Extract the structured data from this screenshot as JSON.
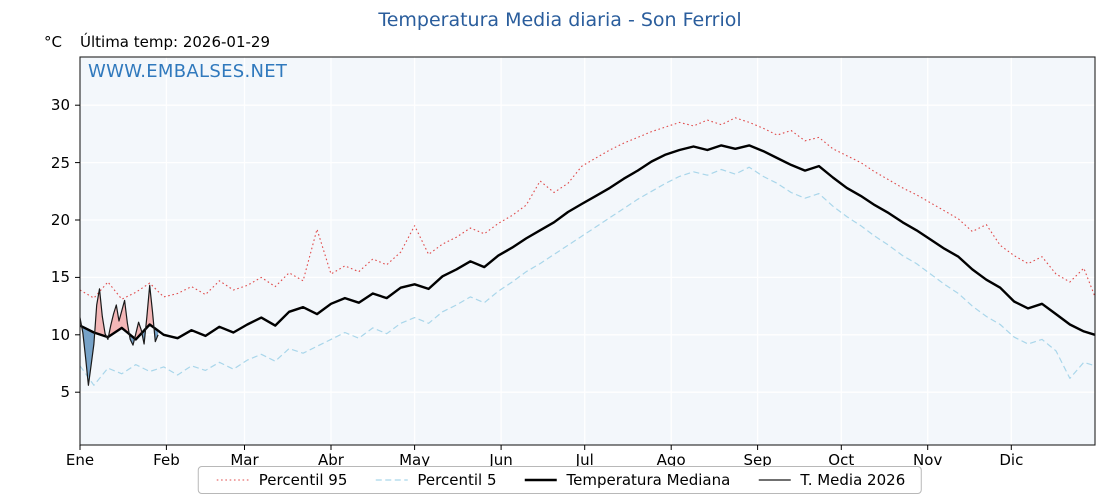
{
  "title": "Temperatura Media diaria - Son Ferriol",
  "header": {
    "y_unit": "°C",
    "last_temp": "Última temp: 2026-01-29"
  },
  "watermark": "WWW.EMBALSES.NET",
  "colors": {
    "title": "#2a5d9c",
    "watermark": "#3079bd",
    "legend_border": "#b8b8b8"
  },
  "chart_data": {
    "type": "line",
    "title": "Temperatura Media diaria - Son Ferriol",
    "xlabel": "",
    "ylabel": "°C",
    "ylim": [
      0.4,
      34.2
    ],
    "y_ticks": [
      5,
      10,
      15,
      20,
      25,
      30
    ],
    "x_tick_labels": [
      "Ene",
      "Feb",
      "Mar",
      "Abr",
      "May",
      "Jun",
      "Jul",
      "Ago",
      "Sep",
      "Oct",
      "Nov",
      "Dic"
    ],
    "month_start_days": [
      1,
      32,
      60,
      91,
      121,
      152,
      182,
      213,
      244,
      274,
      305,
      335
    ],
    "grid": true,
    "plot_bg": "#f3f7fb",
    "grid_color": "#ffffff",
    "legend_position": "bottom",
    "legend": [
      "Percentil 95",
      "Percentil 5",
      "Temperatura Mediana",
      "T. Media 2026"
    ],
    "series": [
      {
        "name": "Percentil 95",
        "color": "#e04b4b",
        "style": "dotted",
        "width": 1.1,
        "x": [
          1,
          6,
          11,
          16,
          21,
          26,
          31,
          36,
          41,
          46,
          51,
          56,
          61,
          66,
          71,
          76,
          81,
          86,
          91,
          96,
          101,
          106,
          111,
          116,
          121,
          126,
          131,
          136,
          141,
          146,
          151,
          156,
          161,
          166,
          171,
          176,
          181,
          186,
          191,
          196,
          201,
          206,
          211,
          216,
          221,
          226,
          231,
          236,
          241,
          246,
          251,
          256,
          261,
          266,
          271,
          276,
          281,
          286,
          291,
          296,
          301,
          306,
          311,
          316,
          321,
          326,
          331,
          336,
          341,
          346,
          351,
          356,
          361,
          365
        ],
        "y": [
          13.9,
          13.2,
          14.6,
          13.1,
          13.7,
          14.5,
          13.3,
          13.6,
          14.2,
          13.5,
          14.7,
          13.9,
          14.3,
          15.0,
          14.2,
          15.4,
          14.7,
          19.2,
          15.3,
          16.0,
          15.5,
          16.6,
          16.1,
          17.2,
          19.5,
          17.0,
          17.9,
          18.5,
          19.3,
          18.8,
          19.7,
          20.4,
          21.3,
          23.4,
          22.4,
          23.2,
          24.7,
          25.4,
          26.1,
          26.7,
          27.2,
          27.7,
          28.1,
          28.5,
          28.2,
          28.7,
          28.3,
          28.9,
          28.5,
          28.0,
          27.4,
          27.8,
          26.9,
          27.2,
          26.2,
          25.6,
          25.0,
          24.2,
          23.5,
          22.8,
          22.2,
          21.5,
          20.8,
          20.1,
          19.0,
          19.6,
          17.8,
          16.9,
          16.2,
          16.8,
          15.3,
          14.6,
          15.8,
          13.3
        ]
      },
      {
        "name": "Percentil 5",
        "color": "#a9d6ea",
        "style": "dashed",
        "width": 1.2,
        "x": [
          1,
          6,
          11,
          16,
          21,
          26,
          31,
          36,
          41,
          46,
          51,
          56,
          61,
          66,
          71,
          76,
          81,
          86,
          91,
          96,
          101,
          106,
          111,
          116,
          121,
          126,
          131,
          136,
          141,
          146,
          151,
          156,
          161,
          166,
          171,
          176,
          181,
          186,
          191,
          196,
          201,
          206,
          211,
          216,
          221,
          226,
          231,
          236,
          241,
          246,
          251,
          256,
          261,
          266,
          271,
          276,
          281,
          286,
          291,
          296,
          301,
          306,
          311,
          316,
          321,
          326,
          331,
          336,
          341,
          346,
          351,
          356,
          361,
          365
        ],
        "y": [
          7.3,
          5.6,
          7.1,
          6.6,
          7.4,
          6.8,
          7.2,
          6.5,
          7.3,
          6.9,
          7.6,
          7.0,
          7.8,
          8.3,
          7.7,
          8.8,
          8.4,
          9.0,
          9.6,
          10.2,
          9.7,
          10.6,
          10.1,
          11.0,
          11.5,
          11.0,
          12.0,
          12.6,
          13.3,
          12.8,
          13.8,
          14.6,
          15.5,
          16.2,
          17.0,
          17.8,
          18.6,
          19.4,
          20.2,
          21.0,
          21.8,
          22.5,
          23.2,
          23.8,
          24.2,
          23.9,
          24.4,
          24.0,
          24.6,
          23.8,
          23.2,
          22.4,
          21.9,
          22.3,
          21.2,
          20.3,
          19.5,
          18.6,
          17.8,
          16.9,
          16.2,
          15.3,
          14.4,
          13.6,
          12.5,
          11.6,
          10.9,
          9.8,
          9.2,
          9.6,
          8.6,
          6.2,
          7.6,
          7.3
        ]
      },
      {
        "name": "Temperatura Mediana",
        "color": "#000000",
        "style": "solid",
        "width": 2.4,
        "x": [
          1,
          6,
          11,
          16,
          21,
          26,
          31,
          36,
          41,
          46,
          51,
          56,
          61,
          66,
          71,
          76,
          81,
          86,
          91,
          96,
          101,
          106,
          111,
          116,
          121,
          126,
          131,
          136,
          141,
          146,
          151,
          156,
          161,
          166,
          171,
          176,
          181,
          186,
          191,
          196,
          201,
          206,
          211,
          216,
          221,
          226,
          231,
          236,
          241,
          246,
          251,
          256,
          261,
          266,
          271,
          276,
          281,
          286,
          291,
          296,
          301,
          306,
          311,
          316,
          321,
          326,
          331,
          336,
          341,
          346,
          351,
          356,
          361,
          365
        ],
        "y": [
          10.8,
          10.2,
          9.8,
          10.6,
          9.6,
          10.9,
          10.0,
          9.7,
          10.4,
          9.9,
          10.7,
          10.2,
          10.9,
          11.5,
          10.8,
          12.0,
          12.4,
          11.8,
          12.7,
          13.2,
          12.8,
          13.6,
          13.2,
          14.1,
          14.4,
          14.0,
          15.1,
          15.7,
          16.4,
          15.9,
          16.9,
          17.6,
          18.4,
          19.1,
          19.8,
          20.7,
          21.4,
          22.1,
          22.8,
          23.6,
          24.3,
          25.1,
          25.7,
          26.1,
          26.4,
          26.1,
          26.5,
          26.2,
          26.5,
          26.0,
          25.4,
          24.8,
          24.3,
          24.7,
          23.7,
          22.8,
          22.1,
          21.3,
          20.6,
          19.8,
          19.1,
          18.3,
          17.5,
          16.8,
          15.7,
          14.8,
          14.1,
          12.9,
          12.3,
          12.7,
          11.8,
          10.9,
          10.3,
          10.0
        ]
      },
      {
        "name": "T. Media 2026",
        "color": "#1a1a1a",
        "style": "solid",
        "width": 1.2,
        "fill_vs": "Temperatura Mediana",
        "fill_above_color": "#f3b7b7",
        "fill_below_color": "#76a2c8",
        "x": [
          1,
          2,
          3,
          4,
          5,
          6,
          7,
          8,
          9,
          10,
          11,
          12,
          13,
          14,
          15,
          16,
          17,
          18,
          19,
          20,
          21,
          22,
          23,
          24,
          25,
          26,
          27,
          28,
          29
        ],
        "y": [
          11.5,
          10.2,
          8.0,
          5.6,
          7.4,
          9.2,
          12.6,
          14.0,
          11.6,
          10.1,
          9.6,
          10.8,
          11.8,
          12.6,
          11.2,
          12.1,
          13.0,
          11.0,
          9.6,
          9.1,
          10.1,
          11.1,
          10.4,
          9.2,
          11.6,
          14.3,
          12.0,
          9.4,
          10.0
        ]
      }
    ]
  }
}
